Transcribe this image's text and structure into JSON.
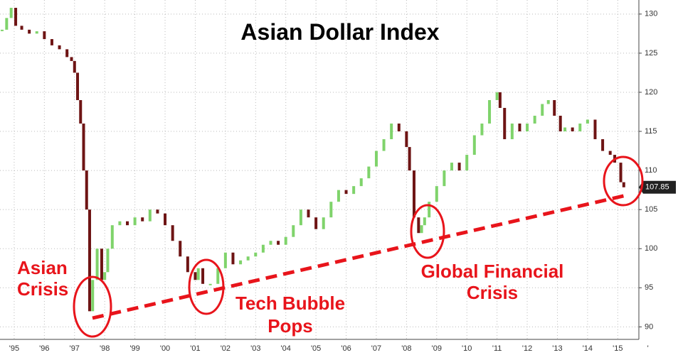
{
  "chart_data": {
    "type": "bars-from-close",
    "title": "Asian Dollar Index",
    "annotations": [
      {
        "lines": [
          "Asian",
          "Crisis"
        ]
      },
      {
        "lines": [
          "Tech Bubble",
          "Pops"
        ]
      },
      {
        "lines": [
          "Global Financial",
          "Crisis"
        ]
      }
    ],
    "series": [
      {
        "name": "Asian Dollar Index",
        "up_color": "#7fd36b",
        "down_color": "#6e1414",
        "x": [
          1995.1,
          1995.25,
          1995.4,
          1995.55,
          1995.75,
          1996.0,
          1996.25,
          1996.5,
          1996.75,
          1997.0,
          1997.25,
          1997.4,
          1997.5,
          1997.6,
          1997.7,
          1997.8,
          1997.9,
          1998.0,
          1998.1,
          1998.25,
          1998.4,
          1998.5,
          1998.6,
          1998.75,
          1999.0,
          1999.25,
          1999.5,
          1999.75,
          2000.0,
          2000.25,
          2000.5,
          2000.75,
          2001.0,
          2001.25,
          2001.5,
          2001.6,
          2001.75,
          2002.0,
          2002.25,
          2002.5,
          2002.75,
          2003.0,
          2003.25,
          2003.5,
          2003.75,
          2004.0,
          2004.25,
          2004.5,
          2004.75,
          2005.0,
          2005.25,
          2005.5,
          2005.75,
          2006.0,
          2006.25,
          2006.5,
          2006.75,
          2007.0,
          2007.25,
          2007.5,
          2007.75,
          2008.0,
          2008.25,
          2008.5,
          2008.6,
          2008.75,
          2008.9,
          2009.0,
          2009.1,
          2009.25,
          2009.5,
          2009.75,
          2010.0,
          2010.25,
          2010.5,
          2010.75,
          2011.0,
          2011.25,
          2011.5,
          2011.6,
          2011.75,
          2012.0,
          2012.25,
          2012.5,
          2012.75,
          2013.0,
          2013.2,
          2013.4,
          2013.6,
          2013.75,
          2014.0,
          2014.25,
          2014.5,
          2014.75,
          2015.0,
          2015.25,
          2015.4,
          2015.6,
          2015.7
        ],
        "values": [
          128,
          129.5,
          130.8,
          128.5,
          128,
          127.5,
          127.8,
          126.8,
          126,
          125.5,
          124.5,
          124,
          122.5,
          119,
          116,
          110,
          105,
          92,
          96,
          100,
          96,
          97,
          100,
          103,
          103.5,
          103,
          104,
          103.5,
          105,
          104.5,
          103,
          101,
          99,
          97,
          96,
          97.5,
          95.5,
          95.5,
          97.5,
          99.5,
          98,
          98.5,
          99,
          99.5,
          100.5,
          101,
          100.5,
          101.5,
          103,
          105,
          104,
          102.5,
          104,
          106,
          107.5,
          107,
          108,
          109,
          110.5,
          112.5,
          114,
          116,
          115,
          113,
          110,
          104,
          102,
          103,
          104,
          106,
          108,
          110,
          111,
          110,
          112,
          114.5,
          116,
          119,
          120,
          118,
          114,
          116,
          115,
          116,
          117,
          118.5,
          119,
          117,
          115,
          115.5,
          115,
          116,
          116.5,
          114,
          112.5,
          112,
          111,
          108.5,
          107.85
        ]
      }
    ],
    "xlim": [
      1995.03,
      2016.2
    ],
    "ylim": [
      88.4,
      131.8
    ],
    "xticks": [
      {
        "value": 1995.5,
        "label": "'95"
      },
      {
        "value": 1996.5,
        "label": "'96"
      },
      {
        "value": 1997.5,
        "label": "'97"
      },
      {
        "value": 1998.5,
        "label": "'98"
      },
      {
        "value": 1999.5,
        "label": "'99"
      },
      {
        "value": 2000.5,
        "label": "'00"
      },
      {
        "value": 2001.5,
        "label": "'01"
      },
      {
        "value": 2002.5,
        "label": "'02"
      },
      {
        "value": 2003.5,
        "label": "'03"
      },
      {
        "value": 2004.5,
        "label": "'04"
      },
      {
        "value": 2005.5,
        "label": "'05"
      },
      {
        "value": 2006.5,
        "label": "'06"
      },
      {
        "value": 2007.5,
        "label": "'07"
      },
      {
        "value": 2008.5,
        "label": "'08"
      },
      {
        "value": 2009.5,
        "label": "'09"
      },
      {
        "value": 2010.5,
        "label": "'10"
      },
      {
        "value": 2011.5,
        "label": "'11"
      },
      {
        "value": 2012.5,
        "label": "'12"
      },
      {
        "value": 2013.5,
        "label": "'13"
      },
      {
        "value": 2014.5,
        "label": "'14"
      },
      {
        "value": 2015.5,
        "label": "'15"
      },
      {
        "value": 2016.5,
        "label": "'"
      }
    ],
    "yticks": [
      90,
      95,
      100,
      105,
      110,
      115,
      120,
      125,
      130
    ],
    "grid": true
  }
}
